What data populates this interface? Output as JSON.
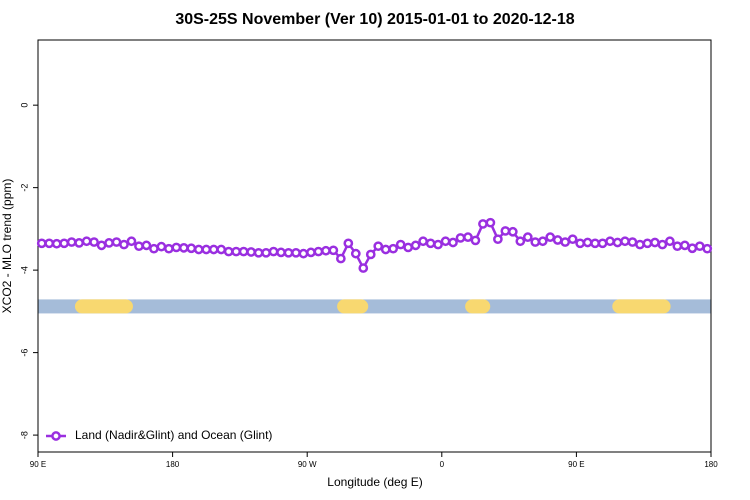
{
  "chart_data": {
    "type": "line",
    "title": "30S-25S November (Ver 10)   2015-01-01 to 2020-12-18",
    "xlabel": "Longitude (deg E)",
    "ylabel": "XCO2 - MLO trend (ppm)",
    "xlim": [
      90,
      540
    ],
    "ylim": [
      -8.41,
      1.58
    ],
    "xticks": [
      {
        "value": 90,
        "label": "90 E"
      },
      {
        "value": 180,
        "label": "180"
      },
      {
        "value": 270,
        "label": "90 W"
      },
      {
        "value": 360,
        "label": "0"
      },
      {
        "value": 450,
        "label": "90 E"
      },
      {
        "value": 540,
        "label": "180"
      }
    ],
    "yticks": [
      0,
      -2,
      -4,
      -6,
      -8
    ],
    "legend": "bottom-left",
    "band_y": -4.88,
    "ocean_color": "#a5bcd9",
    "land_color": "#f8d870",
    "land_segments": [
      [
        114.7,
        153.5
      ],
      [
        290,
        310.8
      ],
      [
        375.6,
        392.4
      ],
      [
        474,
        513
      ]
    ],
    "x": [
      92.5,
      97.5,
      102.5,
      107.5,
      112.5,
      117.5,
      122.5,
      127.5,
      132.5,
      137.5,
      142.5,
      147.5,
      152.5,
      157.5,
      162.5,
      167.5,
      172.5,
      177.5,
      182.5,
      187.5,
      192.5,
      197.5,
      202.5,
      207.5,
      212.5,
      217.5,
      222.5,
      227.5,
      232.5,
      237.5,
      242.5,
      247.5,
      252.5,
      257.5,
      262.5,
      267.5,
      272.5,
      277.5,
      282.5,
      287.5,
      292.5,
      297.5,
      302.5,
      307.5,
      312.5,
      317.5,
      322.5,
      327.5,
      332.5,
      337.5,
      342.5,
      347.5,
      352.5,
      357.5,
      362.5,
      367.5,
      372.5,
      377.5,
      382.5,
      387.5,
      392.5,
      397.5,
      402.5,
      407.5,
      412.5,
      417.5,
      422.5,
      427.5,
      432.5,
      437.5,
      442.5,
      447.5,
      452.5,
      457.5,
      462.5,
      467.5,
      472.5,
      477.5,
      482.5,
      487.5,
      492.5,
      497.5,
      502.5,
      507.5,
      512.5,
      517.5,
      522.5,
      527.5,
      532.5,
      537.5
    ],
    "series": [
      {
        "name": "Land (Nadir&Glint) and Ocean (Glint)",
        "color": "#9a2fe0",
        "values": [
          -3.35,
          -3.35,
          -3.36,
          -3.35,
          -3.32,
          -3.34,
          -3.3,
          -3.32,
          -3.4,
          -3.34,
          -3.32,
          -3.38,
          -3.3,
          -3.42,
          -3.4,
          -3.48,
          -3.43,
          -3.48,
          -3.45,
          -3.46,
          -3.47,
          -3.5,
          -3.5,
          -3.5,
          -3.5,
          -3.55,
          -3.55,
          -3.55,
          -3.56,
          -3.58,
          -3.58,
          -3.55,
          -3.57,
          -3.58,
          -3.58,
          -3.6,
          -3.57,
          -3.55,
          -3.53,
          -3.52,
          -3.72,
          -3.35,
          -3.6,
          -3.95,
          -3.62,
          -3.42,
          -3.5,
          -3.48,
          -3.38,
          -3.45,
          -3.4,
          -3.3,
          -3.35,
          -3.38,
          -3.3,
          -3.33,
          -3.22,
          -3.2,
          -3.28,
          -2.88,
          -2.85,
          -3.25,
          -3.05,
          -3.07,
          -3.3,
          -3.2,
          -3.32,
          -3.3,
          -3.2,
          -3.27,
          -3.32,
          -3.25,
          -3.35,
          -3.33,
          -3.35,
          -3.35,
          -3.3,
          -3.33,
          -3.3,
          -3.32,
          -3.38,
          -3.35,
          -3.33,
          -3.38,
          -3.3,
          -3.42,
          -3.4,
          -3.47,
          -3.42,
          -3.48
        ]
      }
    ]
  }
}
